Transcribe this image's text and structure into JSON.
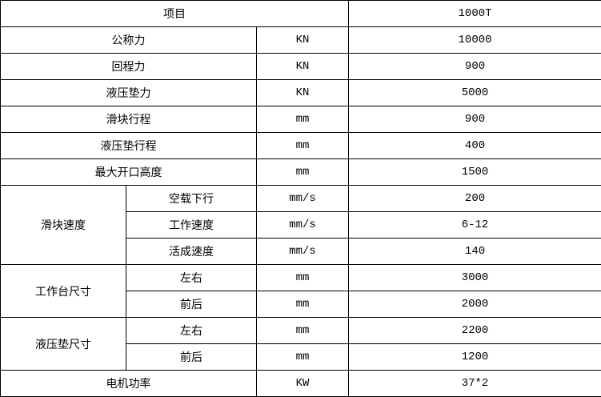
{
  "header": {
    "item": "项目",
    "value": "1000T"
  },
  "rows": [
    {
      "label": "公称力",
      "unit": "KN",
      "value": "10000"
    },
    {
      "label": "回程力",
      "unit": "KN",
      "value": "900"
    },
    {
      "label": "液压垫力",
      "unit": "KN",
      "value": "5000"
    },
    {
      "label": "滑块行程",
      "unit": "mm",
      "value": "900"
    },
    {
      "label": "液压垫行程",
      "unit": "mm",
      "value": "400"
    },
    {
      "label": "最大开口高度",
      "unit": "mm",
      "value": "1500"
    }
  ],
  "groups": [
    {
      "label": "滑块速度",
      "items": [
        {
          "label": "空载下行",
          "unit": "mm/s",
          "value": "200"
        },
        {
          "label": "工作速度",
          "unit": "mm/s",
          "value": "6-12"
        },
        {
          "label": "活成速度",
          "unit": "mm/s",
          "value": "140"
        }
      ]
    },
    {
      "label": "工作台尺寸",
      "items": [
        {
          "label": "左右",
          "unit": "mm",
          "value": "3000"
        },
        {
          "label": "前后",
          "unit": "mm",
          "value": "2000"
        }
      ]
    },
    {
      "label": "液压垫尺寸",
      "items": [
        {
          "label": "左右",
          "unit": "mm",
          "value": "2200"
        },
        {
          "label": "前后",
          "unit": "mm",
          "value": "1200"
        }
      ]
    }
  ],
  "footer": {
    "label": "电机功率",
    "unit": "KW",
    "value": "37*2"
  }
}
